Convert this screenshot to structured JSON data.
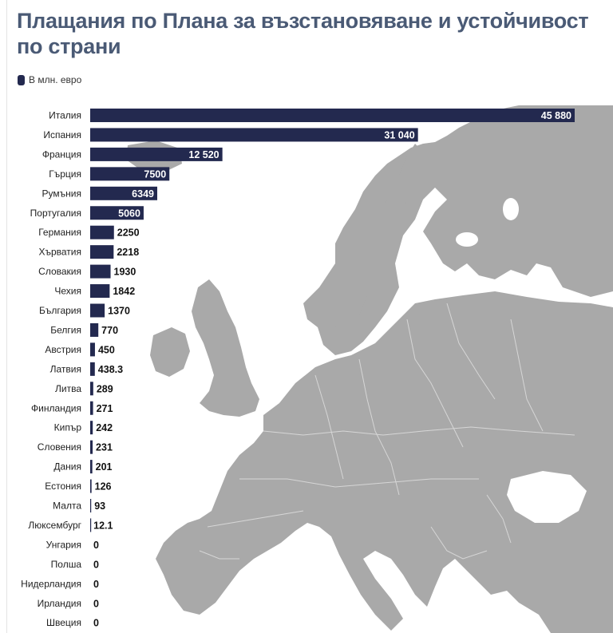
{
  "header": {
    "title": "Плащания по Плана за възстановяване и устойчивост по страни"
  },
  "colors": {
    "bar": "#23294f",
    "map_land": "#a9a9a9",
    "map_border": "#d6d6d6",
    "title": "#4a5a75"
  },
  "chart_data": {
    "type": "bar",
    "orientation": "horizontal",
    "title": "Плащания по Плана за възстановяване и устойчивост по страни",
    "xlabel": "",
    "ylabel": "",
    "xlim": [
      0,
      45880
    ],
    "grid": false,
    "legend_position": "top-left",
    "series": [
      {
        "name": "В млн. евро",
        "values": [
          45880,
          31040,
          12520,
          7500,
          6349,
          5060,
          2250,
          2218,
          1930,
          1842,
          1370,
          770,
          450,
          438.3,
          289,
          271,
          242,
          231,
          201,
          126,
          93,
          12.1,
          0,
          0,
          0,
          0,
          0
        ]
      }
    ],
    "categories": [
      "Италия",
      "Испания",
      "Франция",
      "Гърция",
      "Румъния",
      "Португалия",
      "Германия",
      "Хърватия",
      "Словакия",
      "Чехия",
      "България",
      "Белгия",
      "Австрия",
      "Латвия",
      "Литва",
      "Финландия",
      "Кипър",
      "Словения",
      "Дания",
      "Естония",
      "Малта",
      "Люксембург",
      "Унгария",
      "Полша",
      "Нидерландия",
      "Ирландия",
      "Швеция"
    ],
    "value_labels": [
      "45 880",
      "31 040",
      "12 520",
      "7500",
      "6349",
      "5060",
      "2250",
      "2218",
      "1930",
      "1842",
      "1370",
      "770",
      "450",
      "438.3",
      "289",
      "271",
      "242",
      "231",
      "201",
      "126",
      "93",
      "12.1",
      "0",
      "0",
      "0",
      "0",
      "0"
    ]
  }
}
